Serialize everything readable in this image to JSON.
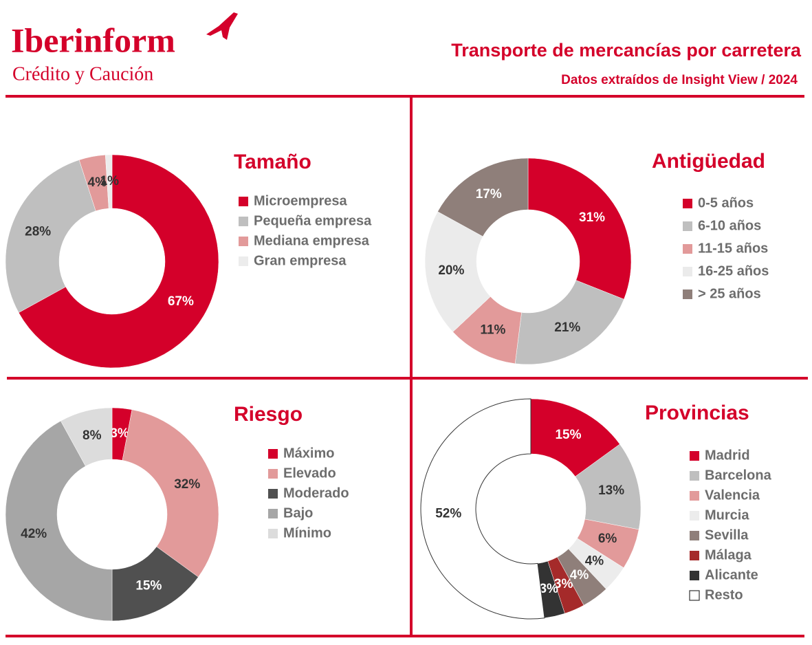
{
  "header": {
    "brand": "Iberinform",
    "brand_subtitle": "Crédito y Caución",
    "title": "Transporte de mercancías por carretera",
    "subtitle": "Datos extraídos de Insight View / 2024"
  },
  "chart_data": [
    {
      "type": "pie",
      "title": "Tamaño",
      "categories": [
        "Microempresa",
        "Pequeña empresa",
        "Mediana empresa",
        "Gran empresa"
      ],
      "values": [
        67,
        28,
        4,
        1
      ],
      "value_labels": [
        "67%",
        "28%",
        "4%",
        "1%"
      ],
      "colors": [
        "#d4002a",
        "#bfbfbf",
        "#e29a9a",
        "#ececec"
      ]
    },
    {
      "type": "pie",
      "title": "Antigüedad",
      "categories": [
        "0-5 años",
        "6-10 años",
        "11-15 años",
        "16-25 años",
        "> 25 años"
      ],
      "values": [
        31,
        21,
        11,
        20,
        17
      ],
      "value_labels": [
        "31%",
        "21%",
        "11%",
        "20%",
        "17%"
      ],
      "colors": [
        "#d4002a",
        "#bfbfbf",
        "#e29a9a",
        "#ebebeb",
        "#8f7f7a"
      ]
    },
    {
      "type": "pie",
      "title": "Riesgo",
      "categories": [
        "Máximo",
        "Elevado",
        "Moderado",
        "Bajo",
        "Mínimo"
      ],
      "values": [
        3,
        32,
        15,
        42,
        8
      ],
      "value_labels": [
        "3%",
        "32%",
        "15%",
        "42%",
        "8%"
      ],
      "colors": [
        "#d4002a",
        "#e29a9a",
        "#505050",
        "#a6a6a6",
        "#dcdcdc"
      ]
    },
    {
      "type": "pie",
      "title": "Provincias",
      "categories": [
        "Madrid",
        "Barcelona",
        "Valencia",
        "Murcia",
        "Sevilla",
        "Málaga",
        "Alicante",
        "Resto"
      ],
      "values": [
        15,
        13,
        6,
        4,
        4,
        3,
        3,
        52
      ],
      "value_labels": [
        "15%",
        "13%",
        "6%",
        "4%",
        "4%",
        "3%",
        "3%",
        "52%"
      ],
      "colors": [
        "#d4002a",
        "#bfbfbf",
        "#e29a9a",
        "#ececec",
        "#8f7f7a",
        "#a52a2a",
        "#333333",
        "#ffffff"
      ]
    }
  ]
}
